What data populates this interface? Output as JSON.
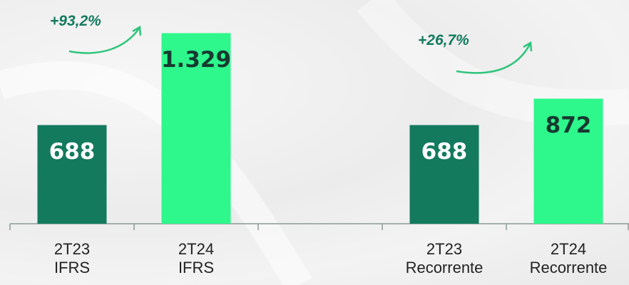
{
  "chart_data": {
    "type": "bar",
    "categories": [
      "2T23\nIFRS",
      "2T24\nIFRS",
      null,
      "2T23\nRecorrente",
      "2T24\nRecorrente"
    ],
    "values": [
      688,
      1329,
      null,
      688,
      872
    ],
    "value_labels": [
      "688",
      "1.329",
      null,
      "688",
      "872"
    ],
    "colors": [
      "#137a5e",
      "#2ef78c",
      null,
      "#137a5e",
      "#2ef78c"
    ],
    "label_colors": [
      "#ffffff",
      "#173a30",
      null,
      "#ffffff",
      "#173a30"
    ],
    "ylim": [
      0,
      1560
    ],
    "annotations": [
      "+93,2%",
      "+26,7%"
    ]
  }
}
